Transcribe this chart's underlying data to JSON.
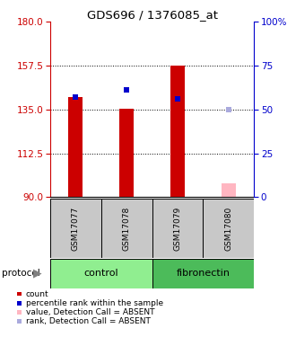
{
  "title": "GDS696 / 1376085_at",
  "samples": [
    "GSM17077",
    "GSM17078",
    "GSM17079",
    "GSM17080"
  ],
  "groups": [
    "control",
    "control",
    "fibronectin",
    "fibronectin"
  ],
  "group_colors": {
    "control": "#90EE90",
    "fibronectin": "#4CBB5A"
  },
  "ylim_left": [
    90,
    180
  ],
  "ylim_right": [
    0,
    100
  ],
  "yticks_left": [
    90,
    112.5,
    135,
    157.5,
    180
  ],
  "yticks_right": [
    0,
    25,
    50,
    75,
    100
  ],
  "ytick_labels_right": [
    "0",
    "25",
    "50",
    "75",
    "100%"
  ],
  "left_color": "#CC0000",
  "right_color": "#0000CC",
  "bar_values": [
    141.5,
    135.5,
    157.5,
    97.0
  ],
  "bar_absent": [
    false,
    false,
    false,
    true
  ],
  "rank_values": [
    141.5,
    145.0,
    140.5,
    135.0
  ],
  "rank_absent": [
    false,
    false,
    false,
    true
  ],
  "bar_base": 90,
  "legend_items": [
    {
      "color": "#CC0000",
      "label": "count"
    },
    {
      "color": "#0000CC",
      "label": "percentile rank within the sample"
    },
    {
      "color": "#FFB6C1",
      "label": "value, Detection Call = ABSENT"
    },
    {
      "color": "#AAAADD",
      "label": "rank, Detection Call = ABSENT"
    }
  ],
  "protocol_label": "protocol",
  "grid_yticks": [
    112.5,
    135,
    157.5
  ],
  "absent_bar_color": "#FFB6C1",
  "absent_rank_color": "#AAAADD",
  "present_bar_color": "#CC0000",
  "present_rank_color": "#0000CC",
  "bg_color": "#FFFFFF",
  "sample_box_color": "#C8C8C8"
}
